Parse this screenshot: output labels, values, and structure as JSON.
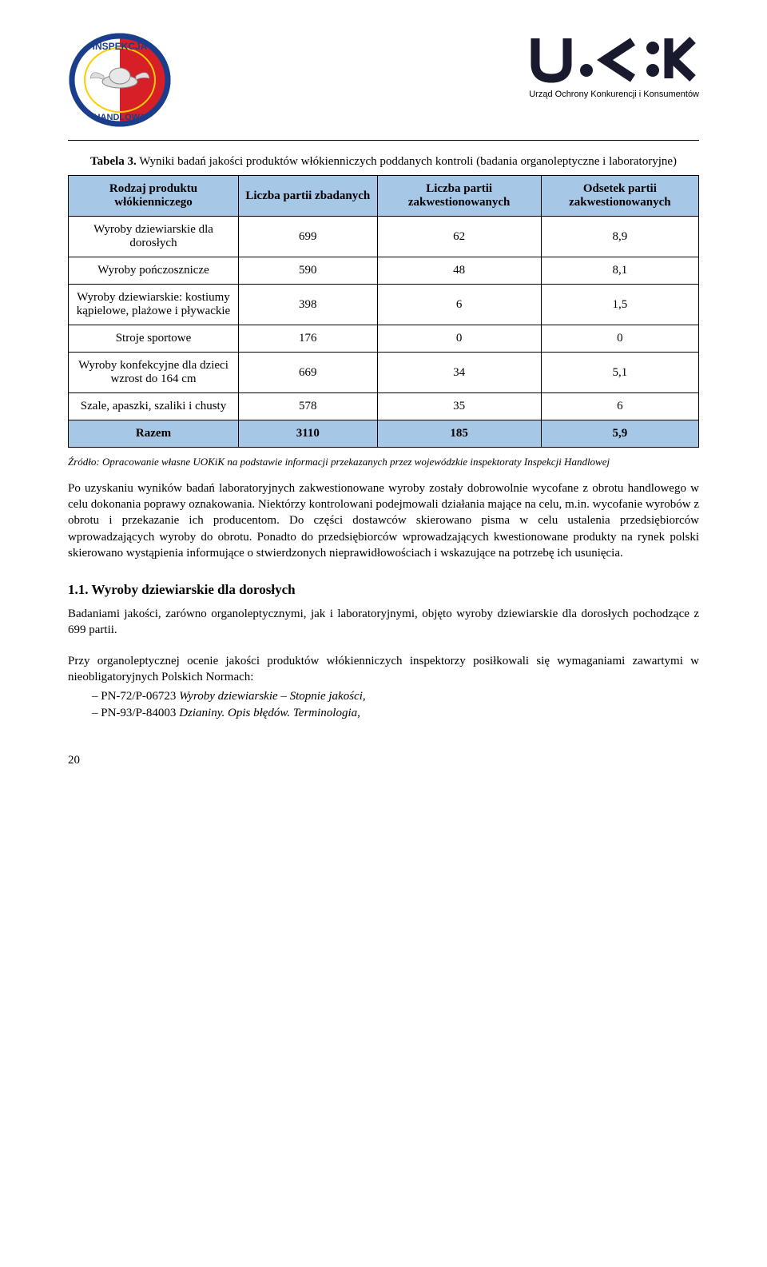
{
  "header": {
    "uokik_caption": "Urząd Ochrony Konkurencji i Konsumentów"
  },
  "table_caption_prefix": "Tabela 3.",
  "table_caption_rest": " Wyniki badań jakości produktów włókienniczych poddanych kontroli (badania organoleptyczne i laboratoryjne)",
  "table": {
    "header_bg": "#a7c7e7",
    "columns": [
      "Rodzaj produktu włókienniczego",
      "Liczba partii zbadanych",
      "Liczba partii zakwestionowanych",
      "Odsetek partii zakwestionowanych"
    ],
    "rows": [
      {
        "label": "Wyroby dziewiarskie dla dorosłych",
        "c1": "699",
        "c2": "62",
        "c3": "8,9"
      },
      {
        "label": "Wyroby pończosznicze",
        "c1": "590",
        "c2": "48",
        "c3": "8,1"
      },
      {
        "label": "Wyroby dziewiarskie: kostiumy kąpielowe, plażowe i pływackie",
        "c1": "398",
        "c2": "6",
        "c3": "1,5"
      },
      {
        "label": "Stroje sportowe",
        "c1": "176",
        "c2": "0",
        "c3": "0"
      },
      {
        "label": "Wyroby konfekcyjne dla dzieci wzrost do 164 cm",
        "c1": "669",
        "c2": "34",
        "c3": "5,1"
      },
      {
        "label": "Szale, apaszki, szaliki i chusty",
        "c1": "578",
        "c2": "35",
        "c3": "6"
      }
    ],
    "total": {
      "label": "Razem",
      "c1": "3110",
      "c2": "185",
      "c3": "5,9"
    }
  },
  "source_note": "Źródło: Opracowanie własne UOKiK na podstawie informacji przekazanych przez wojewódzkie inspektoraty Inspekcji Handlowej",
  "paragraph1": "Po uzyskaniu wyników badań laboratoryjnych zakwestionowane wyroby zostały dobrowolnie wycofane z obrotu handlowego w celu dokonania poprawy oznakowania. Niektórzy kontrolowani podejmowali działania mające na celu, m.in. wycofanie wyrobów z obrotu i przekazanie ich producentom. Do części dostawców skierowano pisma w celu ustalenia przedsiębiorców wprowadzających wyroby do obrotu. Ponadto do przedsiębiorców wprowadzających kwestionowane produkty na rynek polski skierowano wystąpienia informujące o stwierdzonych nieprawidłowościach i wskazujące na potrzebę ich usunięcia.",
  "section_title": "1.1. Wyroby dziewiarskie dla dorosłych",
  "paragraph2": "Badaniami jakości, zarówno organoleptycznymi, jak i laboratoryjnymi, objęto wyroby dziewiarskie dla dorosłych pochodzące z 699 partii.",
  "paragraph3": "Przy organoleptycznej ocenie jakości produktów włókienniczych inspektorzy posiłkowali się wymaganiami zawartymi w nieobligatoryjnych Polskich Normach:",
  "norms": [
    {
      "code": "PN-72/P-06723 ",
      "title": "Wyroby dziewiarskie – Stopnie jakości,",
      "trail": ""
    },
    {
      "code": "PN-93/P-84003 ",
      "title": "Dzianiny. Opis błędów. Terminologia,",
      "trail": ""
    }
  ],
  "page_number": "20"
}
